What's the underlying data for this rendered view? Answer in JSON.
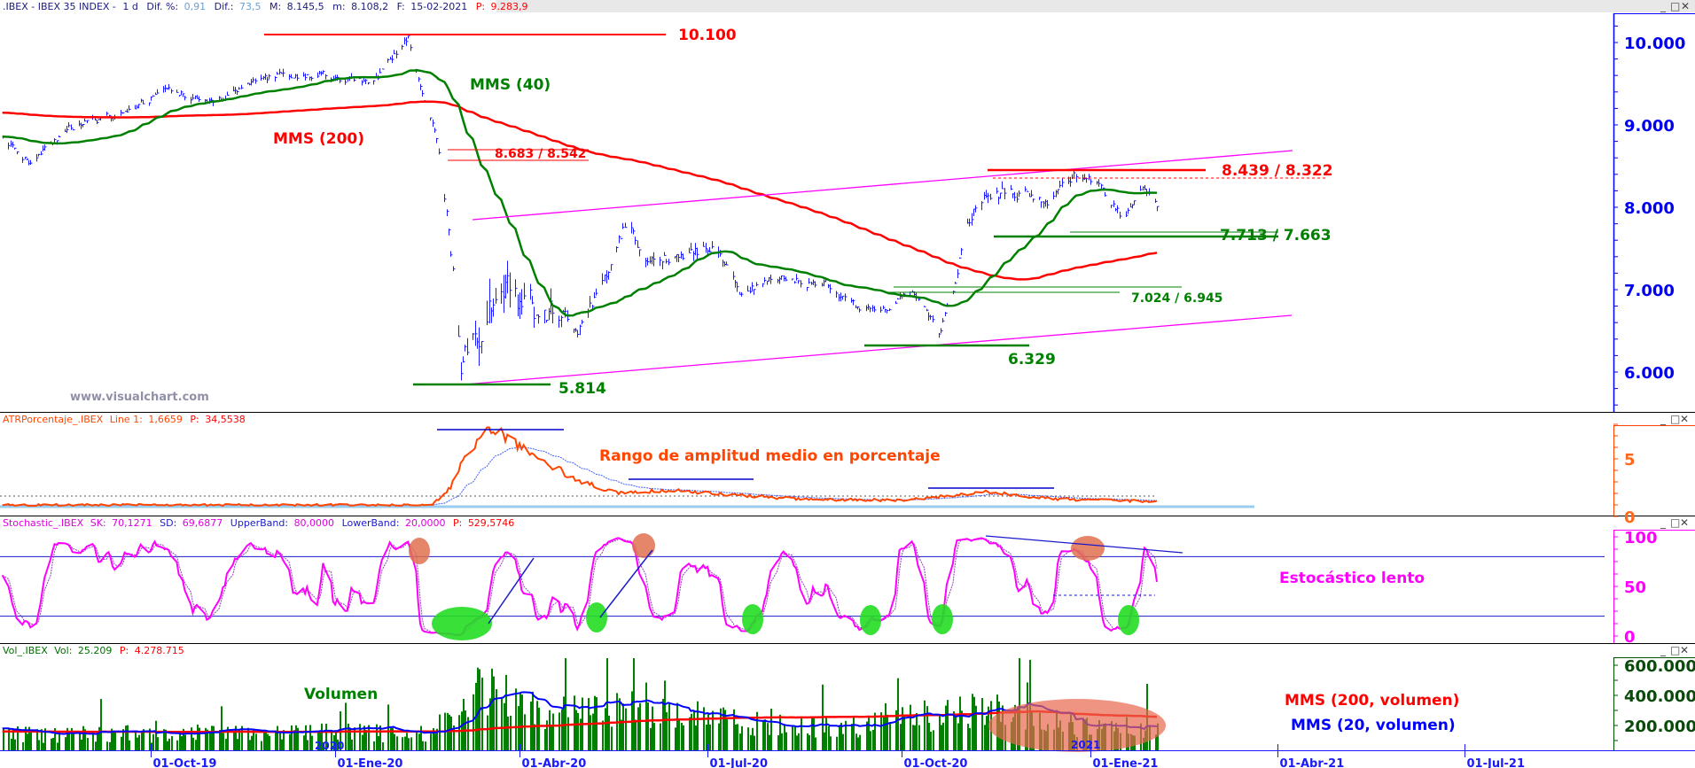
{
  "header": {
    "symbol": ".IBEX - IBEX 35 INDEX -",
    "period": "1 d",
    "dif_pct_label": "Dif. %:",
    "dif_pct": "0,91",
    "dif_label": "Dif.:",
    "dif": "73,5",
    "max_label": "M:",
    "max": "8.145,5",
    "min_label": "m:",
    "min": "8.108,2",
    "date_label": "F:",
    "date": "15-02-2021",
    "p_label": "P:",
    "p": "9.283,9"
  },
  "panels": {
    "atr": {
      "name": "ATRPorcentaje_.IBEX",
      "line_label": "Line 1:",
      "line": "1,6659",
      "p_label": "P:",
      "p": "34,5538"
    },
    "stoch": {
      "name": "Stochastic_.IBEX",
      "sk_label": "SK:",
      "sk": "70,1271",
      "sd_label": "SD:",
      "sd": "69,6877",
      "upper_label": "UpperBand:",
      "upper": "80,0000",
      "lower_label": "LowerBand:",
      "lower": "20,0000",
      "p_label": "P:",
      "p": "529,5746"
    },
    "vol": {
      "name": "Vol_.IBEX",
      "vol_label": "Vol:",
      "vol": "25.209",
      "p_label": "P:",
      "p": "4.278.715"
    }
  },
  "window_controls": {
    "minimize": "_",
    "maximize": "□",
    "close": "✕"
  },
  "annotations": {
    "level_10100": "10.100",
    "mms40": "MMS (40)",
    "mms200": "MMS (200)",
    "level_8683": "8.683 / 8.542",
    "level_8439": "8.439 / 8.322",
    "level_7713": "7.713 / 7.663",
    "level_7024": "7.024 / 6.945",
    "level_6329": "6.329",
    "level_5814": "5.814",
    "atr_title": "Rango de amplitud medio en porcentaje",
    "stoch_title": "Estocástico lento",
    "volume_title": "Volumen",
    "vol_mms200": "MMS (200, volumen)",
    "vol_mms20": "MMS (20, volumen)",
    "year_2020": "2020",
    "year_2021": "2021"
  },
  "watermark": "www.visualchart.com",
  "colors": {
    "bars": "#1a1aff",
    "mms40": "#008000",
    "mms200": "#ff0000",
    "channel": "#ff00ff",
    "atr": "#ff4500",
    "stoch": "#ff00ff",
    "volume": "#008000",
    "vol_ma20": "#0000ff",
    "vol_ma200": "#ff0000"
  },
  "chart_data": [
    {
      "type": "ohlc",
      "title": "",
      "y_ticks": [
        "10.000",
        "9.000",
        "8.000",
        "7.000",
        "6.000"
      ],
      "ylim": [
        5600,
        10400
      ],
      "x_ticks": [
        "01-Oct-19",
        "01-Ene-20",
        "01-Abr-20",
        "01-Jul-20",
        "01-Oct-20",
        "01-Ene-21",
        "01-Abr-21",
        "01-Jul-21"
      ],
      "series": [
        {
          "name": "MMS (40)",
          "kind": "moving-average",
          "period": 40
        },
        {
          "name": "MMS (200)",
          "kind": "moving-average",
          "period": 200
        }
      ],
      "close_approx": [
        [
          "2019-07-19",
          8820
        ],
        [
          "2019-08-01",
          8560
        ],
        [
          "2019-08-25",
          9020
        ],
        [
          "2019-09-20",
          9150
        ],
        [
          "2019-10-06",
          9410
        ],
        [
          "2019-11-02",
          9280
        ],
        [
          "2019-12-03",
          9610
        ],
        [
          "2019-12-24",
          9610
        ],
        [
          "2020-01-20",
          9540
        ],
        [
          "2020-02-06",
          10070
        ],
        [
          "2020-02-12",
          9475
        ],
        [
          "2020-02-20",
          8820
        ],
        [
          "2020-02-25",
          7840
        ],
        [
          "2020-03-01",
          6720
        ],
        [
          "2020-03-03",
          6000
        ],
        [
          "2020-03-09",
          6590
        ],
        [
          "2020-03-23",
          6920
        ],
        [
          "2020-04-02",
          6720
        ],
        [
          "2020-04-18",
          6790
        ],
        [
          "2020-05-01",
          6590
        ],
        [
          "2020-05-14",
          7250
        ],
        [
          "2020-05-24",
          7900
        ],
        [
          "2020-05-30",
          7380
        ],
        [
          "2020-06-20",
          7380
        ],
        [
          "2020-07-03",
          7570
        ],
        [
          "2020-07-16",
          6990
        ],
        [
          "2020-08-07",
          7120
        ],
        [
          "2020-08-28",
          7050
        ],
        [
          "2020-09-12",
          6720
        ],
        [
          "2020-09-28",
          6850
        ],
        [
          "2020-10-09",
          6920
        ],
        [
          "2020-10-19",
          6460
        ],
        [
          "2020-10-27",
          7050
        ],
        [
          "2020-11-01",
          7770
        ],
        [
          "2020-11-09",
          8100
        ],
        [
          "2020-11-28",
          8230
        ],
        [
          "2020-12-11",
          8100
        ],
        [
          "2020-12-27",
          8400
        ],
        [
          "2021-01-06",
          8230
        ],
        [
          "2021-01-17",
          7840
        ],
        [
          "2021-01-26",
          8230
        ],
        [
          "2021-02-02",
          8030
        ]
      ],
      "levels": [
        10100,
        8683,
        8542,
        8439,
        8322,
        7713,
        7663,
        7024,
        6945,
        6329,
        5814
      ]
    },
    {
      "type": "line",
      "title": "ATRPorcentaje_.IBEX",
      "y_ticks": [
        "5",
        "0"
      ],
      "ylim": [
        0,
        8
      ],
      "values_approx": [
        [
          "2019-07-19",
          1.0
        ],
        [
          "2020-02-18",
          1.0
        ],
        [
          "2020-02-27",
          2.5
        ],
        [
          "2020-03-06",
          5.5
        ],
        [
          "2020-03-16",
          7.4
        ],
        [
          "2020-03-26",
          7.0
        ],
        [
          "2020-04-10",
          5.0
        ],
        [
          "2020-05-01",
          3.0
        ],
        [
          "2020-05-20",
          2.0
        ],
        [
          "2020-06-15",
          2.3
        ],
        [
          "2020-07-01",
          2.0
        ],
        [
          "2020-08-15",
          1.5
        ],
        [
          "2020-10-01",
          1.4
        ],
        [
          "2020-11-12",
          2.1
        ],
        [
          "2020-12-15",
          1.5
        ],
        [
          "2021-02-02",
          1.3
        ]
      ]
    },
    {
      "type": "line",
      "title": "Stochastic_.IBEX",
      "y_ticks": [
        "100",
        "50",
        "0"
      ],
      "ylim": [
        0,
        100
      ],
      "bands": [
        80,
        20
      ],
      "series": [
        {
          "name": "SK"
        },
        {
          "name": "SD"
        }
      ]
    },
    {
      "type": "bar",
      "title": "Vol_.IBEX",
      "y_ticks": [
        "600.000",
        "400.000",
        "200.000"
      ],
      "ylim": [
        0,
        650000
      ],
      "volume_level_approx": [
        [
          "2019-07-19",
          150000
        ],
        [
          "2020-02-15",
          160000
        ],
        [
          "2020-03-01",
          380000
        ],
        [
          "2020-03-15",
          480000
        ],
        [
          "2020-04-15",
          300000
        ],
        [
          "2020-06-01",
          330000
        ],
        [
          "2020-07-01",
          260000
        ],
        [
          "2020-09-01",
          200000
        ],
        [
          "2020-11-10",
          330000
        ],
        [
          "2020-12-15",
          230000
        ],
        [
          "2021-02-02",
          200000
        ]
      ],
      "series": [
        {
          "name": "MMS (200, volumen)"
        },
        {
          "name": "MMS (20, volumen)"
        }
      ]
    }
  ]
}
